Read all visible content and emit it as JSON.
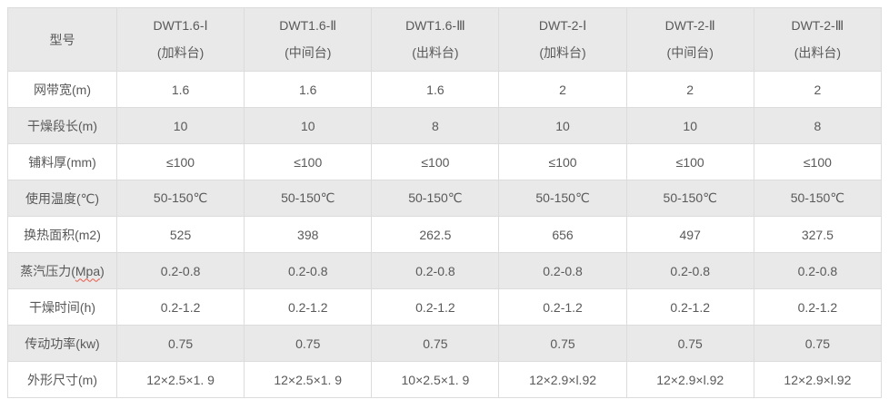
{
  "colors": {
    "header-bg": "#e9e9e9",
    "stripe-bg": "#e9e9e9",
    "row-bg": "#ffffff",
    "border": "#dcdcdc",
    "text": "#595959",
    "spellcheck": "#e8594a"
  },
  "table": {
    "corner_label": "型号",
    "columns": [
      {
        "model": "DWT1.6-Ⅰ",
        "station": "(加料台)"
      },
      {
        "model": "DWT1.6-Ⅱ",
        "station": "(中间台)"
      },
      {
        "model": "DWT1.6-Ⅲ",
        "station": "(出料台)"
      },
      {
        "model": "DWT-2-Ⅰ",
        "station": "(加料台)"
      },
      {
        "model": "DWT-2-Ⅱ",
        "station": "(中间台)"
      },
      {
        "model": "DWT-2-Ⅲ",
        "station": "(出料台)"
      }
    ],
    "rows": [
      {
        "label": "网带宽(m)",
        "values": [
          "1.6",
          "1.6",
          "1.6",
          "2",
          "2",
          "2"
        ]
      },
      {
        "label": "干燥段长(m)",
        "values": [
          "10",
          "10",
          "8",
          "10",
          "10",
          "8"
        ]
      },
      {
        "label": "铺料厚(mm)",
        "values": [
          "≤100",
          "≤100",
          "≤100",
          "≤100",
          "≤100",
          "≤100"
        ]
      },
      {
        "label": "使用温度(℃)",
        "values": [
          "50-150℃",
          "50-150℃",
          "50-150℃",
          "50-150℃",
          "50-150℃",
          "50-150℃"
        ]
      },
      {
        "label": "换热面积(m2)",
        "values": [
          "525",
          "398",
          "262.5",
          "656",
          "497",
          "327.5"
        ]
      },
      {
        "label": "蒸汽压力(Mpa)",
        "label_parts": [
          "蒸汽压力(",
          "Mpa",
          ")"
        ],
        "values": [
          "0.2-0.8",
          "0.2-0.8",
          "0.2-0.8",
          "0.2-0.8",
          "0.2-0.8",
          "0.2-0.8"
        ]
      },
      {
        "label": "干燥时间(h)",
        "values": [
          "0.2-1.2",
          "0.2-1.2",
          "0.2-1.2",
          "0.2-1.2",
          "0.2-1.2",
          "0.2-1.2"
        ]
      },
      {
        "label": "传动功率(kw)",
        "values": [
          "0.75",
          "0.75",
          "0.75",
          "0.75",
          "0.75",
          "0.75"
        ]
      },
      {
        "label": "外形尺寸(m)",
        "values": [
          "12×2.5×1. 9",
          "12×2.5×1. 9",
          "10×2.5×1. 9",
          "12×2.9×l.92",
          "12×2.9×l.92",
          "12×2.9×l.92"
        ]
      }
    ]
  }
}
